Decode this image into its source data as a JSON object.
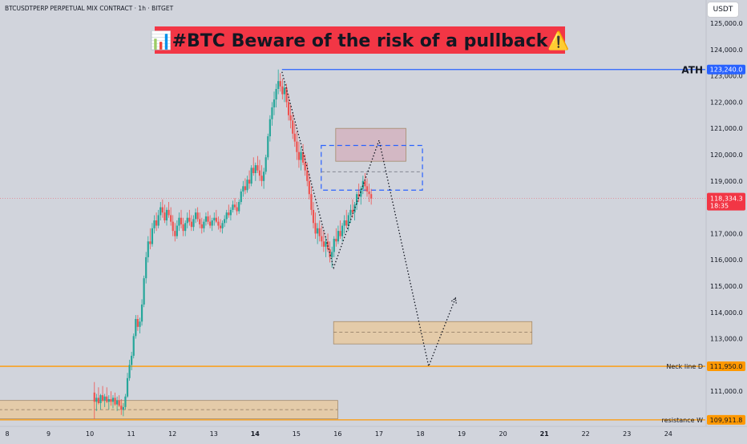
{
  "header": {
    "symbol": "BTCUSDTPERP PERPETUAL MIX CONTRACT · 1h · BITGET",
    "currency_button": "USDT"
  },
  "headline": {
    "text": "📊#BTC Beware of the risk of a pullback⚠️"
  },
  "colors": {
    "background": "#d1d4dc",
    "up_candle": "#26a69a",
    "down_candle": "#ef5350",
    "headline_bg": "#f23645",
    "ath_line": "#2962ff",
    "level_line": "#ff9800",
    "zone_fill": "#e7c9a0",
    "price_tag": "#f23645"
  },
  "chart_data": {
    "type": "candlestick",
    "x_ticks": [
      "8",
      "9",
      "10",
      "11",
      "12",
      "13",
      "14",
      "15",
      "16",
      "17",
      "18",
      "19",
      "20",
      "21",
      "22",
      "23",
      "24"
    ],
    "bold_x_ticks": [
      "14",
      "21"
    ],
    "y_ticks": [
      "125,000.0",
      "124,000.0",
      "123,000.0",
      "122,000.0",
      "121,000.0",
      "120,000.0",
      "119,000.0",
      "118,000.0",
      "117,000.0",
      "116,000.0",
      "115,000.0",
      "114,000.0",
      "113,000.0",
      "112,000.0",
      "111,000.0",
      "110,000.0"
    ],
    "ylim": [
      109700,
      125500
    ],
    "current_price": {
      "value": 118334.3,
      "label": "118,334.3",
      "countdown": "18:35"
    },
    "levels": [
      {
        "name": "ATH",
        "value": 123240,
        "label": "123,240.0",
        "color": "#2962ff",
        "from_day": 14.65
      },
      {
        "name": "Neck line D",
        "value": 111950,
        "label": "111,950.0",
        "color": "#ff9800",
        "from_day": 7.8
      },
      {
        "name": "resistance W",
        "value": 109911.8,
        "label": "109,911.8",
        "color": "#ff9800",
        "from_day": 7.8
      }
    ],
    "zones": [
      {
        "name": "lower-left-demand-zone",
        "from_day": 7.8,
        "to_day": 16.0,
        "low": 109950,
        "high": 110650,
        "mid": 110300,
        "fill": "#e7c9a0"
      },
      {
        "name": "target-zone",
        "from_day": 15.9,
        "to_day": 20.7,
        "low": 112800,
        "high": 113650,
        "mid": 113250,
        "fill": "#e7c9a0"
      },
      {
        "name": "supply-zone",
        "from_day": 15.95,
        "to_day": 17.65,
        "low": 119750,
        "high": 121000,
        "mid": null,
        "fill": "#d4b3bf"
      }
    ],
    "dashed_box": {
      "from_day": 15.6,
      "to_day": 18.05,
      "low": 118650,
      "high": 120350,
      "mid": 119350
    },
    "projection_path": [
      {
        "day": 14.65,
        "price": 123150
      },
      {
        "day": 15.9,
        "price": 115700
      },
      {
        "day": 17.0,
        "price": 120550
      },
      {
        "day": 18.2,
        "price": 111950
      },
      {
        "day": 18.85,
        "price": 114550
      }
    ],
    "candles": [
      [
        10.11,
        110950,
        111350,
        109950,
        110600
      ],
      [
        10.16,
        110600,
        110900,
        110250,
        110750
      ],
      [
        10.21,
        110750,
        111150,
        110500,
        110550
      ],
      [
        10.26,
        110550,
        110900,
        110300,
        110850
      ],
      [
        10.31,
        110850,
        111200,
        110600,
        110650
      ],
      [
        10.36,
        110650,
        110900,
        110400,
        110800
      ],
      [
        10.41,
        110800,
        111150,
        110550,
        110600
      ],
      [
        10.46,
        110600,
        110850,
        110300,
        110700
      ],
      [
        10.51,
        110700,
        111000,
        110450,
        110600
      ],
      [
        10.56,
        110600,
        110850,
        110350,
        110750
      ],
      [
        10.61,
        110750,
        110950,
        110450,
        110500
      ],
      [
        10.66,
        110500,
        110800,
        110250,
        110650
      ],
      [
        10.71,
        110650,
        110850,
        110400,
        110450
      ],
      [
        10.76,
        110450,
        110700,
        110100,
        110300
      ],
      [
        10.81,
        110300,
        110550,
        110050,
        110400
      ],
      [
        10.86,
        110400,
        110900,
        110300,
        110800
      ],
      [
        10.91,
        110800,
        111700,
        110750,
        111500
      ],
      [
        10.96,
        111500,
        112200,
        111400,
        112000
      ],
      [
        11.01,
        112000,
        112500,
        111800,
        112350
      ],
      [
        11.06,
        112350,
        113200,
        112250,
        113100
      ],
      [
        11.11,
        113100,
        113900,
        113000,
        113750
      ],
      [
        11.16,
        113750,
        113900,
        113300,
        113450
      ],
      [
        11.21,
        113450,
        113800,
        113200,
        113650
      ],
      [
        11.26,
        113650,
        114500,
        113500,
        114300
      ],
      [
        11.31,
        114300,
        115400,
        114200,
        115300
      ],
      [
        11.36,
        115300,
        116300,
        115100,
        116100
      ],
      [
        11.41,
        116100,
        116900,
        115900,
        116700
      ],
      [
        11.46,
        116700,
        117200,
        116400,
        116600
      ],
      [
        11.51,
        116600,
        117400,
        116500,
        117200
      ],
      [
        11.56,
        117200,
        117700,
        117000,
        117500
      ],
      [
        11.61,
        117500,
        117800,
        117100,
        117300
      ],
      [
        11.66,
        117300,
        117900,
        117200,
        117700
      ],
      [
        11.71,
        117700,
        118200,
        117500,
        118000
      ],
      [
        11.76,
        118000,
        118300,
        117600,
        117800
      ],
      [
        11.81,
        117800,
        118100,
        117400,
        117500
      ],
      [
        11.86,
        117500,
        118000,
        117300,
        117900
      ],
      [
        11.91,
        117900,
        118200,
        117600,
        117700
      ],
      [
        11.96,
        117700,
        118000,
        117300,
        117450
      ],
      [
        12.01,
        117450,
        117700,
        116900,
        117100
      ],
      [
        12.06,
        117100,
        117400,
        116700,
        116900
      ],
      [
        12.11,
        116900,
        117500,
        116800,
        117300
      ],
      [
        12.16,
        117300,
        117800,
        117100,
        117600
      ],
      [
        12.21,
        117600,
        117900,
        117200,
        117350
      ],
      [
        12.26,
        117350,
        117600,
        116900,
        117100
      ],
      [
        12.31,
        117100,
        117500,
        116900,
        117400
      ],
      [
        12.36,
        117400,
        117800,
        117200,
        117600
      ],
      [
        12.41,
        117600,
        117900,
        117300,
        117450
      ],
      [
        12.46,
        117450,
        117700,
        117100,
        117250
      ],
      [
        12.51,
        117250,
        117700,
        117100,
        117550
      ],
      [
        12.56,
        117550,
        117950,
        117400,
        117800
      ],
      [
        12.61,
        117800,
        118000,
        117450,
        117550
      ],
      [
        12.66,
        117550,
        117800,
        117200,
        117350
      ],
      [
        12.71,
        117350,
        117600,
        117000,
        117200
      ],
      [
        12.76,
        117200,
        117550,
        117050,
        117450
      ],
      [
        12.81,
        117450,
        117800,
        117300,
        117650
      ],
      [
        12.86,
        117650,
        117850,
        117350,
        117450
      ],
      [
        12.91,
        117450,
        117700,
        117200,
        117300
      ],
      [
        12.96,
        117300,
        117600,
        117100,
        117500
      ],
      [
        13.01,
        117500,
        117800,
        117300,
        117600
      ],
      [
        13.06,
        117600,
        117900,
        117400,
        117450
      ],
      [
        13.11,
        117450,
        117650,
        117150,
        117300
      ],
      [
        13.16,
        117300,
        117550,
        117050,
        117200
      ],
      [
        13.21,
        117200,
        117500,
        117000,
        117400
      ],
      [
        13.26,
        117400,
        117700,
        117250,
        117550
      ],
      [
        13.31,
        117550,
        117900,
        117400,
        117800
      ],
      [
        13.36,
        117800,
        118100,
        117600,
        117700
      ],
      [
        13.41,
        117700,
        118000,
        117500,
        117900
      ],
      [
        13.46,
        117900,
        118250,
        117800,
        118100
      ],
      [
        13.51,
        118100,
        118350,
        117900,
        118000
      ],
      [
        13.56,
        118000,
        118200,
        117700,
        117850
      ],
      [
        13.61,
        117850,
        118300,
        117750,
        118200
      ],
      [
        13.66,
        118200,
        118700,
        118100,
        118600
      ],
      [
        13.71,
        118600,
        119000,
        118400,
        118800
      ],
      [
        13.76,
        118800,
        119100,
        118500,
        118650
      ],
      [
        13.81,
        118650,
        119200,
        118550,
        119050
      ],
      [
        13.86,
        119050,
        119400,
        118700,
        118900
      ],
      [
        13.91,
        118900,
        119600,
        118800,
        119500
      ],
      [
        13.96,
        119500,
        119900,
        119200,
        119300
      ],
      [
        14.01,
        119300,
        119700,
        119000,
        119600
      ],
      [
        14.06,
        119600,
        119950,
        119300,
        119400
      ],
      [
        14.11,
        119400,
        119800,
        119000,
        119200
      ],
      [
        14.16,
        119200,
        119600,
        118800,
        119000
      ],
      [
        14.21,
        119000,
        119500,
        118700,
        119350
      ],
      [
        14.26,
        119350,
        120000,
        119250,
        119900
      ],
      [
        14.31,
        119900,
        120800,
        119800,
        120700
      ],
      [
        14.36,
        120700,
        121500,
        120500,
        121350
      ],
      [
        14.41,
        121350,
        122000,
        121100,
        121800
      ],
      [
        14.46,
        121800,
        122400,
        121500,
        122100
      ],
      [
        14.51,
        122100,
        122700,
        121800,
        122500
      ],
      [
        14.56,
        122500,
        123240,
        122300,
        122800
      ],
      [
        14.61,
        122800,
        123100,
        122400,
        122600
      ],
      [
        14.66,
        122600,
        122900,
        122100,
        122300
      ],
      [
        14.71,
        122300,
        122800,
        122000,
        122550
      ],
      [
        14.76,
        122550,
        122700,
        121800,
        122000
      ],
      [
        14.81,
        122000,
        122300,
        121300,
        121500
      ],
      [
        14.86,
        121500,
        121900,
        121000,
        121300
      ],
      [
        14.91,
        121300,
        121600,
        120600,
        120800
      ],
      [
        14.96,
        120800,
        121200,
        120300,
        120500
      ],
      [
        15.01,
        120500,
        120900,
        119800,
        120100
      ],
      [
        15.06,
        120100,
        120500,
        119500,
        119800
      ],
      [
        15.11,
        119800,
        120300,
        119400,
        120100
      ],
      [
        15.16,
        120100,
        120400,
        119600,
        119700
      ],
      [
        15.21,
        119700,
        120000,
        119200,
        119400
      ],
      [
        15.26,
        119400,
        119700,
        118800,
        119000
      ],
      [
        15.31,
        119000,
        119300,
        118300,
        118500
      ],
      [
        15.36,
        118500,
        118800,
        117700,
        117900
      ],
      [
        15.41,
        117900,
        118200,
        117200,
        117400
      ],
      [
        15.46,
        117400,
        117800,
        116800,
        117000
      ],
      [
        15.51,
        117000,
        117400,
        116600,
        117200
      ],
      [
        15.56,
        117200,
        117500,
        116700,
        116900
      ],
      [
        15.61,
        116900,
        117300,
        116500,
        116700
      ],
      [
        15.66,
        116700,
        117100,
        116300,
        116500
      ],
      [
        15.71,
        116500,
        116900,
        116100,
        116700
      ],
      [
        15.76,
        116700,
        117000,
        116300,
        116400
      ],
      [
        15.81,
        116400,
        116700,
        115900,
        116100
      ],
      [
        15.86,
        116100,
        116500,
        115700,
        116300
      ],
      [
        15.91,
        116300,
        116900,
        116100,
        116800
      ],
      [
        15.96,
        116800,
        117200,
        116500,
        116700
      ],
      [
        16.01,
        116700,
        117300,
        116600,
        117100
      ],
      [
        16.06,
        117100,
        117500,
        116800,
        116900
      ],
      [
        16.11,
        116900,
        117400,
        116700,
        117300
      ],
      [
        16.16,
        117300,
        117700,
        117000,
        117500
      ],
      [
        16.21,
        117500,
        117900,
        117200,
        117300
      ],
      [
        16.26,
        117300,
        117800,
        117100,
        117700
      ],
      [
        16.31,
        117700,
        118100,
        117400,
        117900
      ],
      [
        16.36,
        117900,
        118300,
        117600,
        117800
      ],
      [
        16.41,
        117800,
        118200,
        117500,
        118100
      ],
      [
        16.46,
        118100,
        118600,
        117900,
        118500
      ],
      [
        16.51,
        118500,
        118900,
        118200,
        118400
      ],
      [
        16.56,
        118400,
        118800,
        118100,
        118700
      ],
      [
        16.61,
        118700,
        119200,
        118500,
        119000
      ],
      [
        16.66,
        119000,
        119300,
        118600,
        118800
      ],
      [
        16.71,
        118800,
        119100,
        118400,
        118600
      ],
      [
        16.76,
        118600,
        118900,
        118200,
        118500
      ],
      [
        16.81,
        118500,
        118700,
        118100,
        118334.3
      ]
    ]
  }
}
